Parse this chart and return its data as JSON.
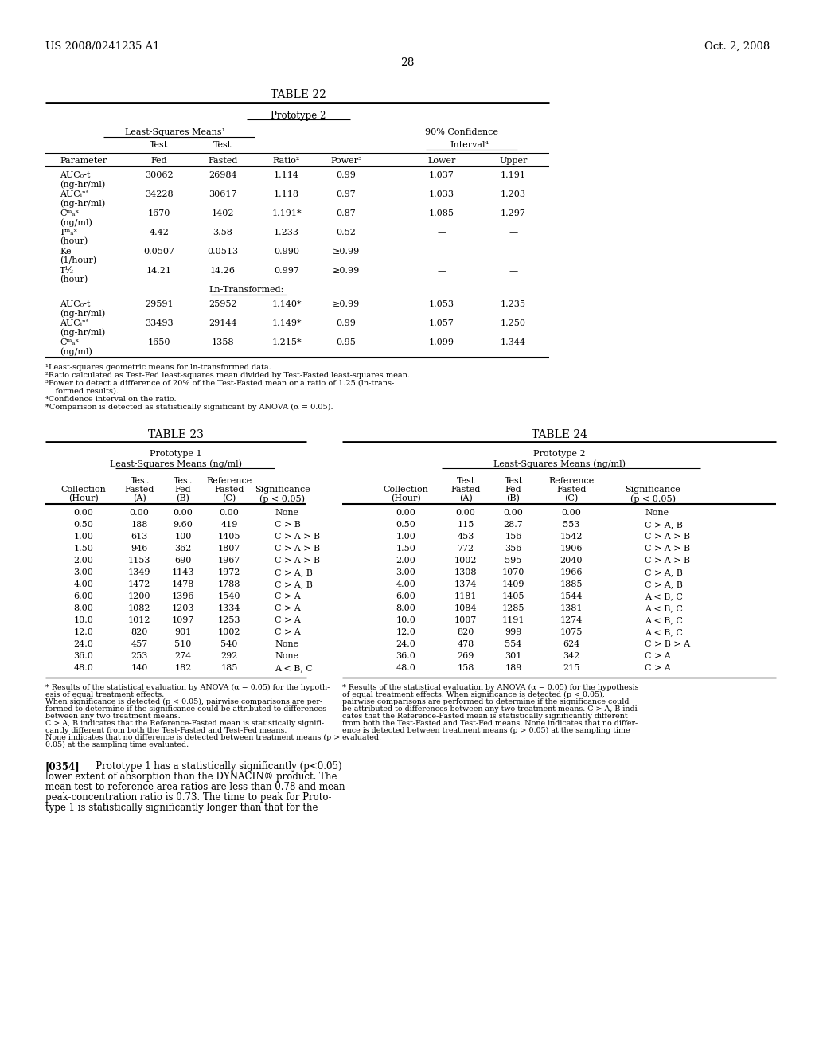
{
  "bg_color": "#ffffff",
  "header_left": "US 2008/0241235 A1",
  "header_right": "Oct. 2, 2008",
  "page_number": "28",
  "table22_title": "TABLE 22",
  "table22_subtitle": "Prototype 2",
  "table22_group1": "Least-Squares Means¹",
  "table22_group2": "90% Confidence",
  "table22_interval": "Interval⁴",
  "table22_rows": [
    [
      "AUC₀-t",
      "(ng-hr/ml)",
      "30062",
      "26984",
      "1.114",
      "0.99",
      "1.037",
      "1.191"
    ],
    [
      "AUCᵢⁿᶠ",
      "(ng-hr/ml)",
      "34228",
      "30617",
      "1.118",
      "0.97",
      "1.033",
      "1.203"
    ],
    [
      "Cᵐₐˣ",
      "(ng/ml)",
      "1670",
      "1402",
      "1.191*",
      "0.87",
      "1.085",
      "1.297"
    ],
    [
      "Tᵐₐˣ",
      "(hour)",
      "4.42",
      "3.58",
      "1.233",
      "0.52",
      "—",
      "—"
    ],
    [
      "Ke",
      "(1/hour)",
      "0.0507",
      "0.0513",
      "0.990",
      "≥0.99",
      "—",
      "—"
    ],
    [
      "T½",
      "(hour)",
      "14.21",
      "14.26",
      "0.997",
      "≥0.99",
      "—",
      "—"
    ]
  ],
  "table22_ln_header": "Ln-Transformed:",
  "table22_ln_rows": [
    [
      "AUC₀-t",
      "(ng-hr/ml)",
      "29591",
      "25952",
      "1.140*",
      "≥0.99",
      "1.053",
      "1.235"
    ],
    [
      "AUCᵢⁿᶠ",
      "(ng-hr/ml)",
      "33493",
      "29144",
      "1.149*",
      "0.99",
      "1.057",
      "1.250"
    ],
    [
      "Cᵐₐˣ",
      "(ng/ml)",
      "1650",
      "1358",
      "1.215*",
      "0.95",
      "1.099",
      "1.344"
    ]
  ],
  "table22_footnotes": [
    "¹Least-squares geometric means for ln-transformed data.",
    "²Ratio calculated as Test-Fed least-squares mean divided by Test-Fasted least-squares mean.",
    "³Power to detect a difference of 20% of the Test-Fasted mean or a ratio of 1.25 (ln-trans-",
    "    formed results).",
    "⁴Confidence interval on the ratio.",
    "*Comparison is detected as statistically significant by ANOVA (α = 0.05)."
  ],
  "table23_title": "TABLE 23",
  "table23_subtitle1": "Prototype 1",
  "table23_subtitle2": "Least-Squares Means (ng/ml)",
  "table23_rows": [
    [
      "0.00",
      "0.00",
      "0.00",
      "0.00",
      "None"
    ],
    [
      "0.50",
      "188",
      "9.60",
      "419",
      "C > B"
    ],
    [
      "1.00",
      "613",
      "100",
      "1405",
      "C > A > B"
    ],
    [
      "1.50",
      "946",
      "362",
      "1807",
      "C > A > B"
    ],
    [
      "2.00",
      "1153",
      "690",
      "1967",
      "C > A > B"
    ],
    [
      "3.00",
      "1349",
      "1143",
      "1972",
      "C > A, B"
    ],
    [
      "4.00",
      "1472",
      "1478",
      "1788",
      "C > A, B"
    ],
    [
      "6.00",
      "1200",
      "1396",
      "1540",
      "C > A"
    ],
    [
      "8.00",
      "1082",
      "1203",
      "1334",
      "C > A"
    ],
    [
      "10.0",
      "1012",
      "1097",
      "1253",
      "C > A"
    ],
    [
      "12.0",
      "820",
      "901",
      "1002",
      "C > A"
    ],
    [
      "24.0",
      "457",
      "510",
      "540",
      "None"
    ],
    [
      "36.0",
      "253",
      "274",
      "292",
      "None"
    ],
    [
      "48.0",
      "140",
      "182",
      "185",
      "A < B, C"
    ]
  ],
  "table23_footnotes": [
    "* Results of the statistical evaluation by ANOVA (α = 0.05) for the hypoth-",
    "esis of equal treatment effects.",
    "When significance is detected (p < 0.05), pairwise comparisons are per-",
    "formed to determine if the significance could be attributed to differences",
    "between any two treatment means.",
    "C > A, B indicates that the Reference-Fasted mean is statistically signifi-",
    "cantly different from both the Test-Fasted and Test-Fed means.",
    "None indicates that no difference is detected between treatment means (p >",
    "0.05) at the sampling time evaluated."
  ],
  "table24_title": "TABLE 24",
  "table24_subtitle1": "Prototype 2",
  "table24_subtitle2": "Least-Squares Means (ng/ml)",
  "table24_rows": [
    [
      "0.00",
      "0.00",
      "0.00",
      "0.00",
      "None"
    ],
    [
      "0.50",
      "115",
      "28.7",
      "553",
      "C > A, B"
    ],
    [
      "1.00",
      "453",
      "156",
      "1542",
      "C > A > B"
    ],
    [
      "1.50",
      "772",
      "356",
      "1906",
      "C > A > B"
    ],
    [
      "2.00",
      "1002",
      "595",
      "2040",
      "C > A > B"
    ],
    [
      "3.00",
      "1308",
      "1070",
      "1966",
      "C > A, B"
    ],
    [
      "4.00",
      "1374",
      "1409",
      "1885",
      "C > A, B"
    ],
    [
      "6.00",
      "1181",
      "1405",
      "1544",
      "A < B, C"
    ],
    [
      "8.00",
      "1084",
      "1285",
      "1381",
      "A < B, C"
    ],
    [
      "10.0",
      "1007",
      "1191",
      "1274",
      "A < B, C"
    ],
    [
      "12.0",
      "820",
      "999",
      "1075",
      "A < B, C"
    ],
    [
      "24.0",
      "478",
      "554",
      "624",
      "C > B > A"
    ],
    [
      "36.0",
      "269",
      "301",
      "342",
      "C > A"
    ],
    [
      "48.0",
      "158",
      "189",
      "215",
      "C > A"
    ]
  ],
  "table24_footnotes": [
    "* Results of the statistical evaluation by ANOVA (α = 0.05) for the hypothesis",
    "of equal treatment effects. When significance is detected (p < 0.05),",
    "pairwise comparisons are performed to determine if the significance could",
    "be attributed to differences between any two treatment means. C > A, B indi-",
    "cates that the Reference-Fasted mean is statistically significantly different",
    "from both the Test-Fasted and Test-Fed means. None indicates that no differ-",
    "ence is detected between treatment means (p > 0.05) at the sampling time",
    "evaluated."
  ],
  "para354_bold": "[0354]",
  "para354_lines": [
    "   Prototype 1 has a statistically significantly (p<0.05)",
    "lower extent of absorption than the DYNACIN® product. The",
    "mean test-to-reference area ratios are less than 0.78 and mean",
    "peak-concentration ratio is 0.73. The time to peak for Proto-",
    "type 1 is statistically significantly longer than that for the"
  ]
}
